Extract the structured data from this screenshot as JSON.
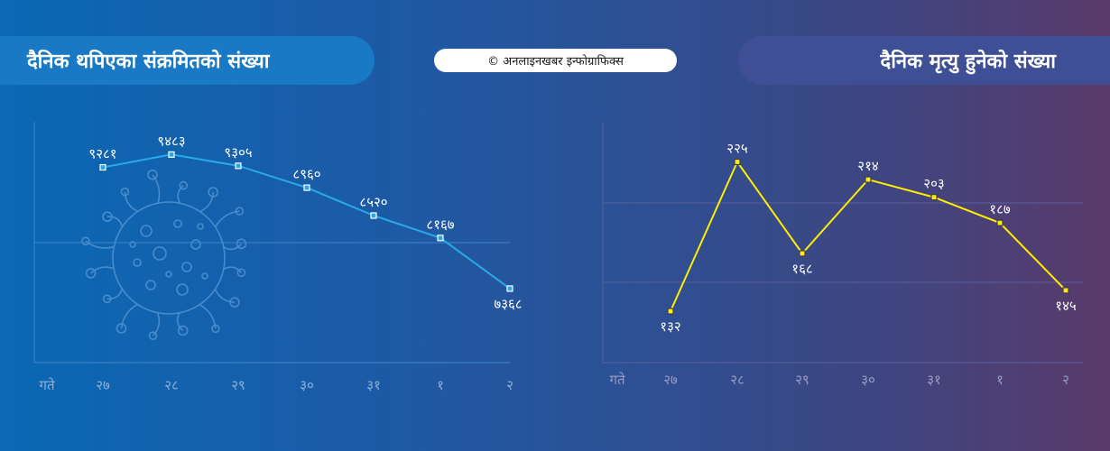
{
  "headings": {
    "left": "दैनिक थपिएका संक्रमितको संख्या",
    "right": "दैनिक मृत्यु हुनेको संख्या",
    "credit": "© अनलाइनखबर इन्फोग्राफिक्स"
  },
  "colors": {
    "left_line": "#29a9e8",
    "right_line": "#ffee00",
    "left_pill": "#1a79c4",
    "right_pill": "#3e4f95"
  },
  "icons": [
    "virus-icon"
  ],
  "chart_data": [
    {
      "type": "line",
      "title": "दैनिक थपिएका संक्रमितको संख्या",
      "xlabel": "गते",
      "categories": [
        "२७",
        "२८",
        "२९",
        "३०",
        "३१",
        "१",
        "२"
      ],
      "values": [
        9281,
        9483,
        9305,
        8960,
        8520,
        8167,
        7368
      ],
      "data_labels": [
        "९२८१",
        "९४८३",
        "९३०५",
        "८९६०",
        "८५२०",
        "८१६७",
        "७३६८"
      ],
      "ylim": [
        6200,
        10000
      ],
      "grid": true
    },
    {
      "type": "line",
      "title": "दैनिक मृत्यु हुनेको संख्या",
      "xlabel": "गते",
      "categories": [
        "२७",
        "२८",
        "२९",
        "३०",
        "३१",
        "१",
        "२"
      ],
      "values": [
        132,
        225,
        168,
        214,
        203,
        187,
        145
      ],
      "data_labels": [
        "१३२",
        "२२५",
        "१६८",
        "२१४",
        "२०३",
        "१८७",
        "१४५"
      ],
      "ylim": [
        100,
        250
      ],
      "grid": true
    }
  ]
}
